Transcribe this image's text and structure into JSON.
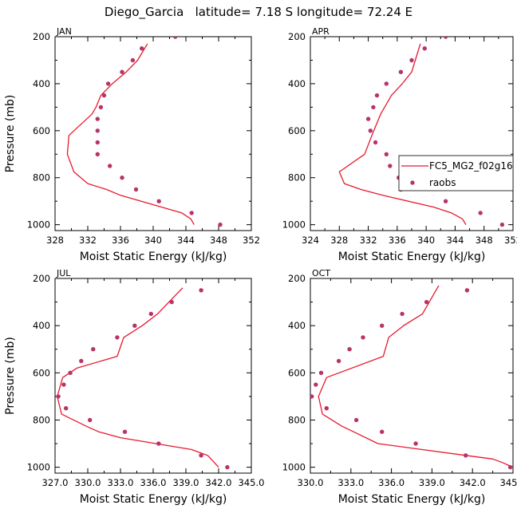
{
  "figure": {
    "title": "Diego_Garcia   latitude= 7.18 S longitude= 72.24 E"
  },
  "legend": {
    "model_label": "FC5_MG2_f02g16",
    "obs_label": "raobs",
    "model_color": "#e8192c",
    "obs_color": "#b8336a"
  },
  "chart_data": [
    {
      "type": "line",
      "panel_label": "JAN",
      "xlabel": "Moist Static Energy (kJ/kg)",
      "ylabel": "Pressure (mb)",
      "xlim": [
        328,
        352
      ],
      "xticks": [
        328,
        332,
        336,
        340,
        344,
        348,
        352
      ],
      "xtick_labels": [
        "328",
        "332",
        "336",
        "340",
        "344",
        "348",
        "352"
      ],
      "ylim": [
        200,
        1025
      ],
      "yticks": [
        200,
        400,
        600,
        800,
        1000
      ],
      "y_inverted": true,
      "series": [
        {
          "kind": "line",
          "x": [
            345.0,
            344.6,
            343.5,
            341.0,
            336.0,
            334.3,
            332.0,
            330.3,
            329.5,
            329.7,
            332.5,
            333.0,
            333.6,
            335.0,
            336.7,
            338.1,
            339.3
          ],
          "y": [
            1000,
            975,
            950,
            925,
            875,
            850,
            825,
            775,
            700,
            620,
            530,
            500,
            450,
            400,
            350,
            300,
            230
          ]
        },
        {
          "kind": "scatter",
          "x": [
            348.2,
            344.7,
            340.7,
            337.9,
            336.2,
            334.7,
            333.2,
            333.2,
            333.2,
            333.2,
            333.6,
            334.0,
            334.5,
            336.2,
            337.5,
            338.6,
            342.7
          ],
          "y": [
            1000,
            950,
            900,
            850,
            800,
            750,
            700,
            650,
            600,
            550,
            500,
            450,
            400,
            350,
            300,
            250,
            200
          ]
        }
      ]
    },
    {
      "type": "line",
      "panel_label": "APR",
      "xlabel": "Moist Static Energy (kJ/kg)",
      "ylabel": "",
      "xlim": [
        324,
        352
      ],
      "xticks": [
        324,
        328,
        332,
        336,
        340,
        344,
        348,
        352
      ],
      "xtick_labels": [
        "324",
        "328",
        "332",
        "336",
        "340",
        "344",
        "348",
        "352"
      ],
      "ylim": [
        200,
        1025
      ],
      "yticks": [
        200,
        400,
        600,
        800,
        1000
      ],
      "y_inverted": true,
      "show_legend": true,
      "series": [
        {
          "kind": "line",
          "x": [
            345.5,
            345.0,
            343.5,
            341.0,
            334.0,
            331.0,
            328.7,
            328.0,
            331.5,
            332.5,
            333.7,
            335.2,
            336.7,
            338.0,
            338.5,
            339.2
          ],
          "y": [
            1000,
            975,
            950,
            925,
            875,
            850,
            825,
            775,
            700,
            620,
            530,
            450,
            400,
            350,
            300,
            230
          ]
        },
        {
          "kind": "scatter",
          "x": [
            350.5,
            347.5,
            342.7,
            336.5,
            336.2,
            335.0,
            334.5,
            333.0,
            332.3,
            332.0,
            332.7,
            333.2,
            334.5,
            336.5,
            338.0,
            339.8,
            342.7
          ],
          "y": [
            1000,
            950,
            900,
            850,
            800,
            750,
            700,
            650,
            600,
            550,
            500,
            450,
            400,
            350,
            300,
            250,
            200
          ]
        }
      ]
    },
    {
      "type": "line",
      "panel_label": "JUL",
      "xlabel": "Moist Static Energy (kJ/kg)",
      "ylabel": "Pressure (mb)",
      "xlim": [
        327,
        345
      ],
      "xticks": [
        327,
        330,
        333,
        336,
        339,
        342,
        345
      ],
      "xtick_labels": [
        "327.0",
        "330.0",
        "333.0",
        "336.0",
        "339.0",
        "342.0",
        "345.0"
      ],
      "ylim": [
        200,
        1025
      ],
      "yticks": [
        200,
        400,
        600,
        800,
        1000
      ],
      "y_inverted": true,
      "series": [
        {
          "kind": "line",
          "x": [
            342.0,
            341.5,
            341.0,
            339.5,
            333.0,
            331.0,
            329.8,
            327.6,
            327.2,
            327.7,
            329.0,
            332.7,
            333.3,
            335.0,
            336.4,
            338.7
          ],
          "y": [
            1000,
            975,
            950,
            925,
            875,
            850,
            825,
            775,
            700,
            620,
            580,
            530,
            450,
            400,
            350,
            240
          ]
        },
        {
          "kind": "scatter",
          "x": [
            342.8,
            340.4,
            336.5,
            333.4,
            330.2,
            328.0,
            327.3,
            327.8,
            328.4,
            329.4,
            330.5,
            332.7,
            334.3,
            335.8,
            337.7,
            340.4
          ],
          "y": [
            1000,
            950,
            900,
            850,
            800,
            750,
            700,
            650,
            600,
            550,
            500,
            450,
            400,
            350,
            300,
            250
          ]
        }
      ]
    },
    {
      "type": "line",
      "panel_label": "OCT",
      "xlabel": "Moist Static Energy (kJ/kg)",
      "ylabel": "",
      "xlim": [
        330,
        345
      ],
      "xticks": [
        330,
        333,
        336,
        339,
        342,
        345
      ],
      "xtick_labels": [
        "330.0",
        "333.0",
        "336.0",
        "339.0",
        "342.0",
        "345.0"
      ],
      "ylim": [
        200,
        1025
      ],
      "yticks": [
        200,
        400,
        600,
        800,
        1000
      ],
      "y_inverted": true,
      "series": [
        {
          "kind": "line",
          "x": [
            345.0,
            344.2,
            343.5,
            341.5,
            335.0,
            333.2,
            332.3,
            330.9,
            330.6,
            331.2,
            335.4,
            335.8,
            336.9,
            338.3,
            339.5
          ],
          "y": [
            1000,
            980,
            965,
            950,
            900,
            850,
            825,
            775,
            700,
            620,
            530,
            450,
            400,
            350,
            230
          ]
        },
        {
          "kind": "scatter",
          "x": [
            344.8,
            341.5,
            337.8,
            335.3,
            333.4,
            331.2,
            330.1,
            330.4,
            330.8,
            332.1,
            332.9,
            333.9,
            335.3,
            336.8,
            338.6,
            341.6
          ],
          "y": [
            1000,
            950,
            900,
            850,
            800,
            750,
            700,
            650,
            600,
            550,
            500,
            450,
            400,
            350,
            300,
            250
          ]
        }
      ]
    }
  ]
}
